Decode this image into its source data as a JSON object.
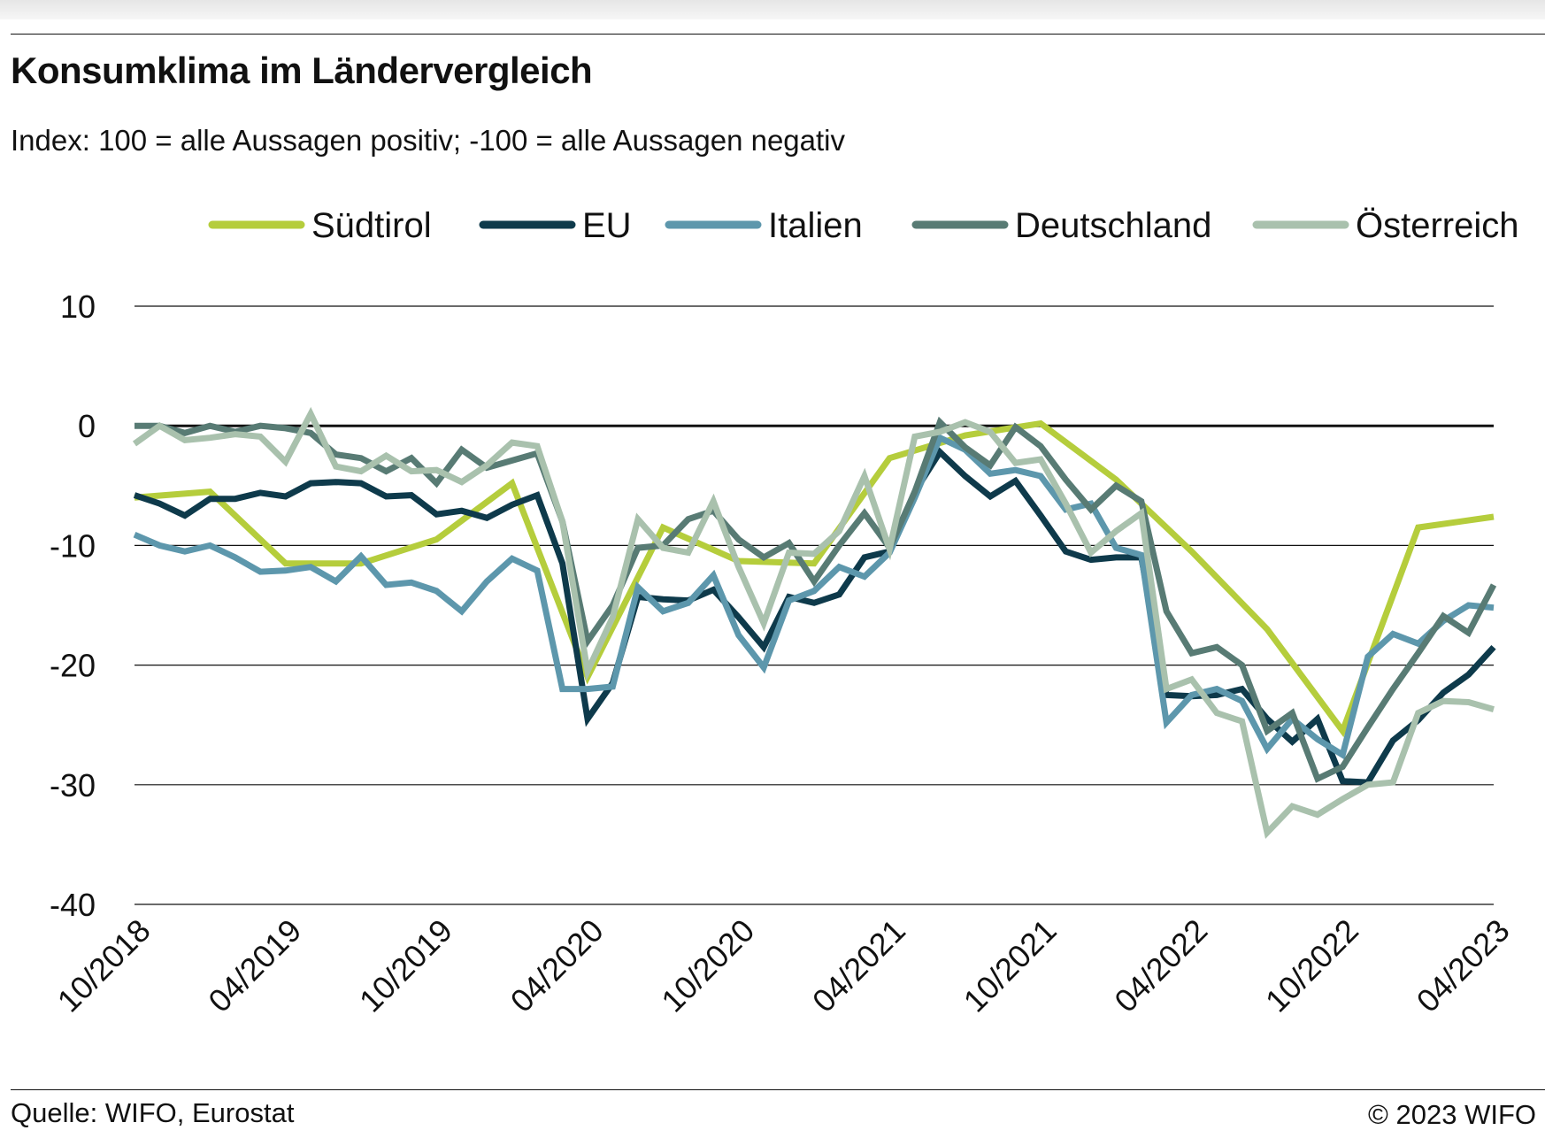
{
  "header": {
    "title": "Konsumklima im Ländervergleich",
    "subtitle": "Index: 100 = alle Aussagen positiv; -100 =  alle Aussagen negativ"
  },
  "footer": {
    "source": "Quelle: WIFO, Eurostat",
    "copyright": "© 2023 WIFO"
  },
  "chart_data": {
    "type": "line",
    "title": "Konsumklima im Ländervergleich",
    "subtitle": "Index: 100 = alle Aussagen positiv; -100 =  alle Aussagen negativ",
    "xlabel": "",
    "ylabel": "",
    "ylim": [
      -40,
      10
    ],
    "yticks": [
      10,
      0,
      -10,
      -20,
      -30,
      -40
    ],
    "xlim": [
      "2018-10",
      "2023-04"
    ],
    "xtick_labels": [
      "10/2018",
      "04/2019",
      "10/2019",
      "04/2020",
      "10/2020",
      "04/2021",
      "10/2021",
      "04/2022",
      "10/2022",
      "04/2023"
    ],
    "grid": "horizontal",
    "zero_line": true,
    "legend_position": "top",
    "series": [
      {
        "name": "Südtirol",
        "color": "#b5cd3c",
        "points": [
          [
            "2018-10",
            -6.0
          ],
          [
            "2019-01",
            -5.5
          ],
          [
            "2019-04",
            -11.5
          ],
          [
            "2019-07",
            -11.5
          ],
          [
            "2019-10",
            -9.5
          ],
          [
            "2020-01",
            -4.8
          ],
          [
            "2020-04",
            -21.0
          ],
          [
            "2020-07",
            -8.5
          ],
          [
            "2020-10",
            -11.3
          ],
          [
            "2021-01",
            -11.5
          ],
          [
            "2021-04",
            -2.7
          ],
          [
            "2021-07",
            -0.8
          ],
          [
            "2021-10",
            0.2
          ],
          [
            "2022-01",
            -4.5
          ],
          [
            "2022-04",
            -10.5
          ],
          [
            "2022-07",
            -17.0
          ],
          [
            "2022-10",
            -25.5
          ],
          [
            "2023-01",
            -8.5
          ],
          [
            "2023-04",
            -7.6
          ]
        ]
      },
      {
        "name": "EU",
        "color": "#0e3a4b",
        "points": [
          [
            "2018-10",
            -5.8
          ],
          [
            "2018-11",
            -6.5
          ],
          [
            "2018-12",
            -7.5
          ],
          [
            "2019-01",
            -6.1
          ],
          [
            "2019-02",
            -6.1
          ],
          [
            "2019-03",
            -5.6
          ],
          [
            "2019-04",
            -5.9
          ],
          [
            "2019-05",
            -4.8
          ],
          [
            "2019-06",
            -4.7
          ],
          [
            "2019-07",
            -4.8
          ],
          [
            "2019-08",
            -5.9
          ],
          [
            "2019-09",
            -5.8
          ],
          [
            "2019-10",
            -7.4
          ],
          [
            "2019-11",
            -7.1
          ],
          [
            "2019-12",
            -7.7
          ],
          [
            "2020-01",
            -6.6
          ],
          [
            "2020-02",
            -5.8
          ],
          [
            "2020-03",
            -11.5
          ],
          [
            "2020-04",
            -24.5
          ],
          [
            "2020-05",
            -21.5
          ],
          [
            "2020-06",
            -14.3
          ],
          [
            "2020-07",
            -14.5
          ],
          [
            "2020-08",
            -14.6
          ],
          [
            "2020-09",
            -13.7
          ],
          [
            "2020-10",
            -16.0
          ],
          [
            "2020-11",
            -18.5
          ],
          [
            "2020-12",
            -14.3
          ],
          [
            "2021-01",
            -14.8
          ],
          [
            "2021-02",
            -14.1
          ],
          [
            "2021-03",
            -11.0
          ],
          [
            "2021-04",
            -10.5
          ],
          [
            "2021-05",
            -5.5
          ],
          [
            "2021-06",
            -2.2
          ],
          [
            "2021-07",
            -4.2
          ],
          [
            "2021-08",
            -5.9
          ],
          [
            "2021-09",
            -4.6
          ],
          [
            "2021-10",
            -7.5
          ],
          [
            "2021-11",
            -10.5
          ],
          [
            "2021-12",
            -11.2
          ],
          [
            "2022-01",
            -11.0
          ],
          [
            "2022-02",
            -11.0
          ],
          [
            "2022-03",
            -22.5
          ],
          [
            "2022-04",
            -22.6
          ],
          [
            "2022-05",
            -22.5
          ],
          [
            "2022-06",
            -22.0
          ],
          [
            "2022-07",
            -24.5
          ],
          [
            "2022-08",
            -26.4
          ],
          [
            "2022-09",
            -24.5
          ],
          [
            "2022-10",
            -29.7
          ],
          [
            "2022-11",
            -29.8
          ],
          [
            "2022-12",
            -26.3
          ],
          [
            "2023-01",
            -24.6
          ],
          [
            "2023-02",
            -22.3
          ],
          [
            "2023-03",
            -20.8
          ],
          [
            "2023-04",
            -18.5
          ]
        ]
      },
      {
        "name": "Italien",
        "color": "#5d97ac",
        "points": [
          [
            "2018-10",
            -9.1
          ],
          [
            "2018-11",
            -10.0
          ],
          [
            "2018-12",
            -10.5
          ],
          [
            "2019-01",
            -10.0
          ],
          [
            "2019-02",
            -11.0
          ],
          [
            "2019-03",
            -12.2
          ],
          [
            "2019-04",
            -12.1
          ],
          [
            "2019-05",
            -11.8
          ],
          [
            "2019-06",
            -13.0
          ],
          [
            "2019-07",
            -10.9
          ],
          [
            "2019-08",
            -13.3
          ],
          [
            "2019-09",
            -13.1
          ],
          [
            "2019-10",
            -13.8
          ],
          [
            "2019-11",
            -15.5
          ],
          [
            "2019-12",
            -13.0
          ],
          [
            "2020-01",
            -11.1
          ],
          [
            "2020-02",
            -12.1
          ],
          [
            "2020-03",
            -22.0
          ],
          [
            "2020-04",
            -22.0
          ],
          [
            "2020-05",
            -21.8
          ],
          [
            "2020-06",
            -13.5
          ],
          [
            "2020-07",
            -15.5
          ],
          [
            "2020-08",
            -14.8
          ],
          [
            "2020-09",
            -12.5
          ],
          [
            "2020-10",
            -17.5
          ],
          [
            "2020-11",
            -20.2
          ],
          [
            "2020-12",
            -14.6
          ],
          [
            "2021-01",
            -13.8
          ],
          [
            "2021-02",
            -11.8
          ],
          [
            "2021-03",
            -12.6
          ],
          [
            "2021-04",
            -10.6
          ],
          [
            "2021-05",
            -6.0
          ],
          [
            "2021-06",
            -1.0
          ],
          [
            "2021-07",
            -2.0
          ],
          [
            "2021-08",
            -4.0
          ],
          [
            "2021-09",
            -3.7
          ],
          [
            "2021-10",
            -4.2
          ],
          [
            "2021-11",
            -7.0
          ],
          [
            "2021-12",
            -6.5
          ],
          [
            "2022-01",
            -10.2
          ],
          [
            "2022-02",
            -10.8
          ],
          [
            "2022-03",
            -24.8
          ],
          [
            "2022-04",
            -22.5
          ],
          [
            "2022-05",
            -22.0
          ],
          [
            "2022-06",
            -23.0
          ],
          [
            "2022-07",
            -27.0
          ],
          [
            "2022-08",
            -24.5
          ],
          [
            "2022-09",
            -26.2
          ],
          [
            "2022-10",
            -27.5
          ],
          [
            "2022-11",
            -19.3
          ],
          [
            "2022-12",
            -17.4
          ],
          [
            "2023-01",
            -18.2
          ],
          [
            "2023-02",
            -16.3
          ],
          [
            "2023-03",
            -15.0
          ],
          [
            "2023-04",
            -15.2
          ]
        ]
      },
      {
        "name": "Deutschland",
        "color": "#587b74",
        "points": [
          [
            "2018-10",
            0.0
          ],
          [
            "2018-11",
            0.0
          ],
          [
            "2018-12",
            -0.6
          ],
          [
            "2019-01",
            0.0
          ],
          [
            "2019-02",
            -0.5
          ],
          [
            "2019-03",
            0.0
          ],
          [
            "2019-04",
            -0.2
          ],
          [
            "2019-05",
            -0.6
          ],
          [
            "2019-06",
            -2.4
          ],
          [
            "2019-07",
            -2.7
          ],
          [
            "2019-08",
            -3.8
          ],
          [
            "2019-09",
            -2.7
          ],
          [
            "2019-10",
            -4.8
          ],
          [
            "2019-11",
            -2.0
          ],
          [
            "2019-12",
            -3.5
          ],
          [
            "2020-01",
            -2.9
          ],
          [
            "2020-02",
            -2.3
          ],
          [
            "2020-03",
            -8.0
          ],
          [
            "2020-04",
            -18.0
          ],
          [
            "2020-05",
            -15.0
          ],
          [
            "2020-06",
            -10.2
          ],
          [
            "2020-07",
            -10.0
          ],
          [
            "2020-08",
            -7.8
          ],
          [
            "2020-09",
            -7.1
          ],
          [
            "2020-10",
            -9.5
          ],
          [
            "2020-11",
            -11.0
          ],
          [
            "2020-12",
            -9.8
          ],
          [
            "2021-01",
            -13.0
          ],
          [
            "2021-02",
            -10.0
          ],
          [
            "2021-03",
            -7.3
          ],
          [
            "2021-04",
            -10.2
          ],
          [
            "2021-05",
            -5.5
          ],
          [
            "2021-06",
            0.3
          ],
          [
            "2021-07",
            -1.8
          ],
          [
            "2021-08",
            -3.3
          ],
          [
            "2021-09",
            -0.1
          ],
          [
            "2021-10",
            -1.7
          ],
          [
            "2021-11",
            -4.5
          ],
          [
            "2021-12",
            -7.0
          ],
          [
            "2022-01",
            -5.0
          ],
          [
            "2022-02",
            -6.3
          ],
          [
            "2022-03",
            -15.5
          ],
          [
            "2022-04",
            -19.0
          ],
          [
            "2022-05",
            -18.5
          ],
          [
            "2022-06",
            -20.0
          ],
          [
            "2022-07",
            -25.5
          ],
          [
            "2022-08",
            -24.0
          ],
          [
            "2022-09",
            -29.5
          ],
          [
            "2022-10",
            -28.5
          ],
          [
            "2022-11",
            -25.2
          ],
          [
            "2022-12",
            -22.0
          ],
          [
            "2023-01",
            -19.0
          ],
          [
            "2023-02",
            -15.9
          ],
          [
            "2023-03",
            -17.3
          ],
          [
            "2023-04",
            -13.3
          ]
        ]
      },
      {
        "name": "Österreich",
        "color": "#a9c1ad",
        "points": [
          [
            "2018-10",
            -1.5
          ],
          [
            "2018-11",
            0.0
          ],
          [
            "2018-12",
            -1.2
          ],
          [
            "2019-01",
            -1.0
          ],
          [
            "2019-02",
            -0.7
          ],
          [
            "2019-03",
            -0.9
          ],
          [
            "2019-04",
            -3.0
          ],
          [
            "2019-05",
            1.0
          ],
          [
            "2019-06",
            -3.4
          ],
          [
            "2019-07",
            -3.8
          ],
          [
            "2019-08",
            -2.5
          ],
          [
            "2019-09",
            -3.8
          ],
          [
            "2019-10",
            -3.7
          ],
          [
            "2019-11",
            -4.7
          ],
          [
            "2019-12",
            -3.3
          ],
          [
            "2020-01",
            -1.4
          ],
          [
            "2020-02",
            -1.7
          ],
          [
            "2020-03",
            -8.0
          ],
          [
            "2020-04",
            -20.5
          ],
          [
            "2020-05",
            -16.0
          ],
          [
            "2020-06",
            -7.8
          ],
          [
            "2020-07",
            -10.2
          ],
          [
            "2020-08",
            -10.6
          ],
          [
            "2020-09",
            -6.3
          ],
          [
            "2020-10",
            -11.8
          ],
          [
            "2020-11",
            -16.5
          ],
          [
            "2020-12",
            -10.6
          ],
          [
            "2021-01",
            -10.7
          ],
          [
            "2021-02",
            -8.8
          ],
          [
            "2021-03",
            -4.2
          ],
          [
            "2021-04",
            -10.3
          ],
          [
            "2021-05",
            -0.9
          ],
          [
            "2021-06",
            -0.5
          ],
          [
            "2021-07",
            0.3
          ],
          [
            "2021-08",
            -0.5
          ],
          [
            "2021-09",
            -3.1
          ],
          [
            "2021-10",
            -2.8
          ],
          [
            "2021-11",
            -6.5
          ],
          [
            "2021-12",
            -10.6
          ],
          [
            "2022-01",
            -8.8
          ],
          [
            "2022-02",
            -7.3
          ],
          [
            "2022-03",
            -22.0
          ],
          [
            "2022-04",
            -21.2
          ],
          [
            "2022-05",
            -24.0
          ],
          [
            "2022-06",
            -24.7
          ],
          [
            "2022-07",
            -34.0
          ],
          [
            "2022-08",
            -31.8
          ],
          [
            "2022-09",
            -32.5
          ],
          [
            "2022-10",
            -31.2
          ],
          [
            "2022-11",
            -30.0
          ],
          [
            "2022-12",
            -29.8
          ],
          [
            "2023-01",
            -24.0
          ],
          [
            "2023-02",
            -23.0
          ],
          [
            "2023-03",
            -23.1
          ],
          [
            "2023-04",
            -23.7
          ]
        ]
      }
    ]
  }
}
